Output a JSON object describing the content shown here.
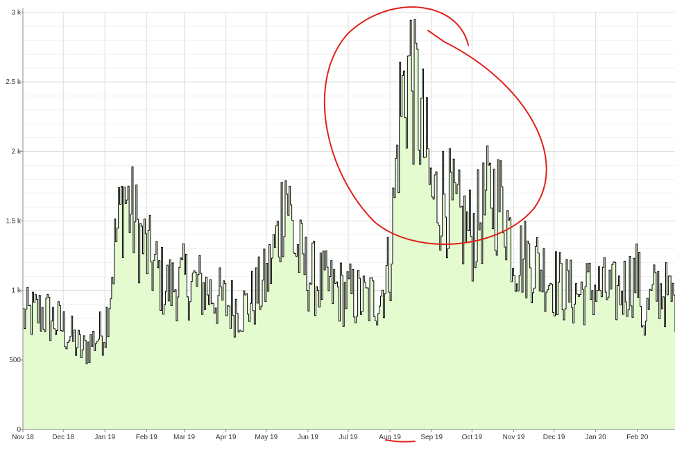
{
  "chart_data": {
    "type": "area",
    "title": "",
    "xlabel": "",
    "ylabel": "",
    "ylim": [
      0,
      3000
    ],
    "xlim": [
      "2018-11-01",
      "2020-02-29"
    ],
    "grid": true,
    "y_ticks": [
      {
        "value": 0,
        "label": "0"
      },
      {
        "value": 500,
        "label": "500"
      },
      {
        "value": 1000,
        "label": "1 k"
      },
      {
        "value": 1500,
        "label": "1.5 k"
      },
      {
        "value": 2000,
        "label": "2 k"
      },
      {
        "value": 2500,
        "label": "2.5 k"
      },
      {
        "value": 3000,
        "label": "3 k"
      }
    ],
    "x_ticks": [
      {
        "date": "2018-11-01",
        "label": "Nov 18"
      },
      {
        "date": "2018-12-01",
        "label": "Dec 18"
      },
      {
        "date": "2019-01-01",
        "label": "Jan 19"
      },
      {
        "date": "2019-02-01",
        "label": "Feb 19"
      },
      {
        "date": "2019-03-01",
        "label": "Mar 19"
      },
      {
        "date": "2019-04-01",
        "label": "Apr 19"
      },
      {
        "date": "2019-05-01",
        "label": "May 19"
      },
      {
        "date": "2019-06-01",
        "label": "Jun 19"
      },
      {
        "date": "2019-07-01",
        "label": "Jul 19"
      },
      {
        "date": "2019-08-01",
        "label": "Aug 19"
      },
      {
        "date": "2019-09-01",
        "label": "Sep 19"
      },
      {
        "date": "2019-10-01",
        "label": "Oct 19"
      },
      {
        "date": "2019-11-01",
        "label": "Nov 19"
      },
      {
        "date": "2019-12-01",
        "label": "Dec 19"
      },
      {
        "date": "2020-01-01",
        "label": "Jan 20"
      },
      {
        "date": "2020-02-01",
        "label": "Feb 20"
      }
    ],
    "series": [
      {
        "x": [
          "2018-11-01",
          "2018-11-15",
          "2018-12-01",
          "2018-12-15",
          "2019-01-01",
          "2019-01-08",
          "2019-01-15",
          "2019-01-22",
          "2019-02-01",
          "2019-02-15",
          "2019-03-01",
          "2019-03-15",
          "2019-04-01",
          "2019-04-15",
          "2019-05-01",
          "2019-05-10",
          "2019-05-15",
          "2019-05-22",
          "2019-06-01",
          "2019-06-15",
          "2019-07-01",
          "2019-07-15",
          "2019-07-25",
          "2019-08-01",
          "2019-08-08",
          "2019-08-15",
          "2019-08-22",
          "2019-09-01",
          "2019-09-10",
          "2019-09-20",
          "2019-10-01",
          "2019-10-15",
          "2019-10-25",
          "2019-11-01",
          "2019-11-15",
          "2019-12-01",
          "2019-12-15",
          "2020-01-01",
          "2020-01-15",
          "2020-02-01",
          "2020-02-05",
          "2020-02-15",
          "2020-02-29"
        ],
        "values": [
          830,
          870,
          750,
          580,
          750,
          1350,
          1750,
          1550,
          1300,
          1050,
          1100,
          1050,
          930,
          900,
          1100,
          1450,
          1850,
          1350,
          1150,
          1050,
          1000,
          950,
          1000,
          1250,
          2350,
          2700,
          2400,
          1700,
          1750,
          1550,
          1450,
          1750,
          1650,
          1300,
          1250,
          1100,
          1000,
          1050,
          1000,
          1150,
          800,
          1050,
          950
        ]
      }
    ],
    "colors": {
      "area_fill": "#e4fbd0",
      "line": "#000000",
      "annotation": "#e0201a"
    }
  }
}
